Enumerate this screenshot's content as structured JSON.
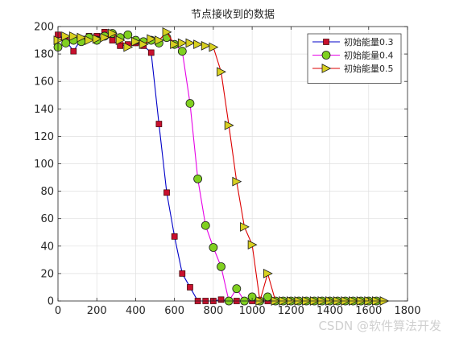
{
  "chart_data": {
    "type": "line",
    "title": "节点接收到的数据",
    "xlabel": "",
    "ylabel": "",
    "xlim": [
      0,
      1800
    ],
    "ylim": [
      0,
      200
    ],
    "xticks": [
      0,
      200,
      400,
      600,
      800,
      1000,
      1200,
      1400,
      1600,
      1800
    ],
    "yticks": [
      0,
      20,
      40,
      60,
      80,
      100,
      120,
      140,
      160,
      180,
      200
    ],
    "grid": true,
    "legend_position": "top-right",
    "series": [
      {
        "name": "初始能量0.3",
        "color": "#0000c8",
        "marker": "square",
        "marker_color": "#c8102e",
        "x": [
          0,
          40,
          80,
          120,
          160,
          200,
          240,
          280,
          320,
          360,
          400,
          440,
          480,
          520,
          560,
          600,
          640,
          680,
          720,
          760,
          800,
          840,
          880,
          920,
          960,
          1000,
          1040,
          1080,
          1120,
          1160,
          1200,
          1240,
          1280,
          1320,
          1360,
          1400,
          1440,
          1480,
          1520,
          1560,
          1600,
          1640
        ],
        "y": [
          194,
          190,
          182,
          191,
          193,
          193,
          196,
          190,
          186,
          187,
          188,
          186,
          181,
          129,
          79,
          47,
          20,
          10,
          0,
          0,
          0,
          1,
          0,
          0,
          0,
          0,
          0,
          0,
          0,
          0,
          0,
          0,
          0,
          0,
          0,
          0,
          0,
          0,
          0,
          0,
          0,
          0
        ]
      },
      {
        "name": "初始能量0.4",
        "color": "#e600e6",
        "marker": "circle",
        "marker_color": "#80d020",
        "x": [
          0,
          40,
          80,
          120,
          160,
          200,
          240,
          280,
          320,
          360,
          400,
          440,
          480,
          520,
          560,
          600,
          640,
          680,
          720,
          760,
          800,
          840,
          880,
          920,
          960,
          1000,
          1040,
          1080,
          1120,
          1160,
          1200,
          1240,
          1280,
          1320,
          1360,
          1400,
          1440,
          1480,
          1520,
          1560,
          1600,
          1640
        ],
        "y": [
          185,
          188,
          190,
          189,
          192,
          190,
          193,
          195,
          192,
          194,
          190,
          189,
          190,
          188,
          192,
          187,
          182,
          144,
          89,
          55,
          39,
          25,
          0,
          9,
          0,
          3,
          0,
          3,
          0,
          0,
          0,
          0,
          0,
          0,
          0,
          0,
          0,
          0,
          0,
          0,
          0,
          0
        ]
      },
      {
        "name": "初始能量0.5",
        "color": "#dc0000",
        "marker": "triangle-right",
        "marker_color": "#d8d020",
        "x": [
          0,
          40,
          80,
          120,
          160,
          200,
          240,
          280,
          320,
          360,
          400,
          440,
          480,
          520,
          560,
          600,
          640,
          680,
          720,
          760,
          800,
          840,
          880,
          920,
          960,
          1000,
          1040,
          1080,
          1120,
          1160,
          1200,
          1240,
          1280,
          1320,
          1360,
          1400,
          1440,
          1480,
          1520,
          1560,
          1600,
          1640,
          1680
        ],
        "y": [
          190,
          193,
          193,
          192,
          190,
          191,
          192,
          195,
          190,
          185,
          189,
          187,
          191,
          190,
          196,
          187,
          188,
          188,
          187,
          186,
          185,
          167,
          128,
          87,
          54,
          41,
          0,
          20,
          0,
          0,
          0,
          0,
          0,
          0,
          0,
          0,
          0,
          0,
          0,
          0,
          0,
          0,
          0
        ]
      }
    ]
  },
  "watermark": {
    "text": "CSDN @软件算法开发"
  }
}
